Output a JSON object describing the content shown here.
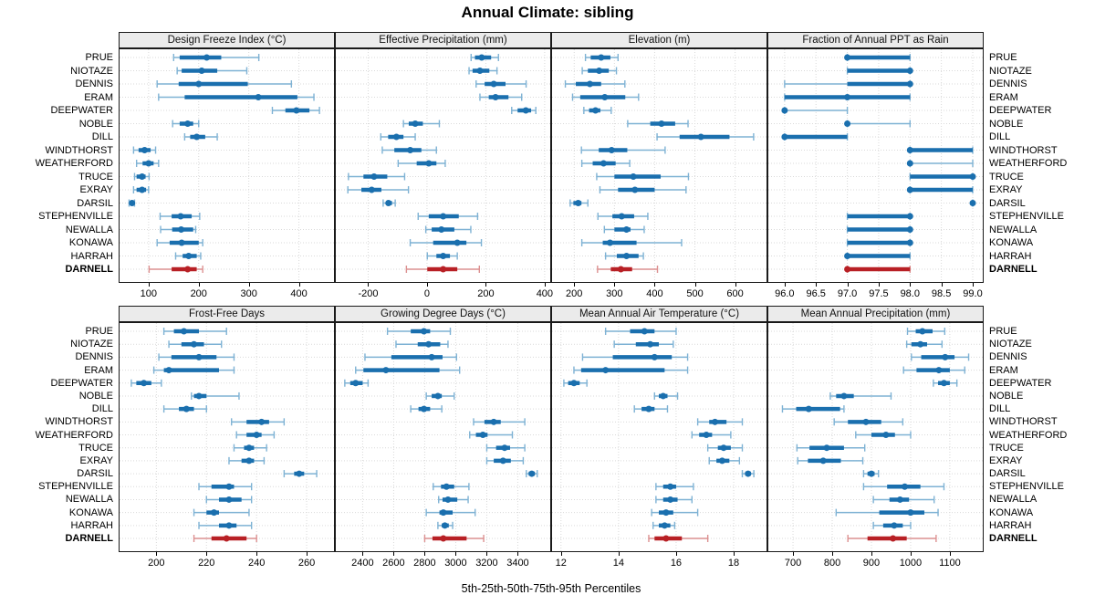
{
  "title": "Annual Climate: sibling",
  "caption": "5th-25th-50th-75th-95th Percentiles",
  "highlight_station": "DARNELL",
  "colors": {
    "blue_dark": "#1a6fae",
    "blue_light": "#7eb2d4",
    "red_dark": "#b82025",
    "red_light": "#dc9090",
    "grid": "#d9d9d9",
    "strip_bg": "#ebebeb",
    "border": "#1a1a1a"
  },
  "chart_data": {
    "type": "percentile-dotplot",
    "percentile_labels": [
      "5th",
      "25th",
      "50th",
      "75th",
      "95th"
    ],
    "legend_position": "none",
    "grid": "dotted",
    "stations": [
      "PRUE",
      "NIOTAZE",
      "DENNIS",
      "ERAM",
      "DEEPWATER",
      "NOBLE",
      "DILL",
      "WINDTHORST",
      "WEATHERFORD",
      "TRUCE",
      "EXRAY",
      "DARSIL",
      "STEPHENVILLE",
      "NEWALLA",
      "KONAWA",
      "HARRAH",
      "DARNELL"
    ],
    "panels": [
      {
        "title": "Design Freeze Index (°C)",
        "row": 0,
        "col": 0,
        "ticks": [
          100,
          200,
          300,
          400
        ],
        "tick_labels": [
          "100",
          "200",
          "300",
          "400"
        ],
        "xlim": [
          42,
          470
        ],
        "values": [
          [
            150,
            162,
            216,
            245,
            320
          ],
          [
            157,
            166,
            206,
            237,
            296
          ],
          [
            117,
            160,
            200,
            298,
            385
          ],
          [
            120,
            172,
            319,
            397,
            430
          ],
          [
            347,
            373,
            395,
            421,
            441
          ],
          [
            148,
            162,
            178,
            189,
            200
          ],
          [
            172,
            183,
            196,
            213,
            237
          ],
          [
            70,
            80,
            92,
            104,
            114
          ],
          [
            76,
            88,
            100,
            110,
            120
          ],
          [
            72,
            76,
            87,
            94,
            101
          ],
          [
            70,
            76,
            87,
            95,
            100
          ],
          [
            61,
            64,
            67,
            70,
            72
          ],
          [
            123,
            146,
            164,
            186,
            202
          ],
          [
            124,
            147,
            165,
            189,
            194
          ],
          [
            117,
            142,
            166,
            200,
            208
          ],
          [
            154,
            168,
            180,
            196,
            204
          ],
          [
            101,
            146,
            178,
            196,
            208
          ]
        ]
      },
      {
        "title": "Effective Precipitation (mm)",
        "row": 0,
        "col": 1,
        "ticks": [
          -200,
          0,
          200,
          400
        ],
        "tick_labels": [
          "-200",
          "0",
          "200",
          "400"
        ],
        "xlim": [
          -310,
          419
        ],
        "values": [
          [
            150,
            163,
            186,
            218,
            243
          ],
          [
            143,
            155,
            180,
            212,
            238
          ],
          [
            167,
            196,
            227,
            267,
            337
          ],
          [
            180,
            210,
            233,
            277,
            322
          ],
          [
            288,
            308,
            336,
            354,
            370
          ],
          [
            -80,
            -62,
            -40,
            -14,
            42
          ],
          [
            -157,
            -132,
            -104,
            -80,
            -40
          ],
          [
            -152,
            -111,
            -57,
            -19,
            32
          ],
          [
            -98,
            -35,
            6,
            32,
            62
          ],
          [
            -267,
            -216,
            -180,
            -135,
            -76
          ],
          [
            -269,
            -223,
            -188,
            -155,
            -63
          ],
          [
            -149,
            -139,
            -131,
            -119,
            -108
          ],
          [
            -30,
            6,
            55,
            108,
            172
          ],
          [
            -4,
            16,
            49,
            93,
            149
          ],
          [
            -57,
            21,
            103,
            134,
            185
          ],
          [
            1,
            32,
            55,
            78,
            103
          ],
          [
            -70,
            1,
            55,
            103,
            178
          ]
        ]
      },
      {
        "title": "Elevation (m)",
        "row": 0,
        "col": 2,
        "ticks": [
          200,
          300,
          400,
          500,
          600
        ],
        "tick_labels": [
          "200",
          "300",
          "400",
          "500",
          "600"
        ],
        "xlim": [
          145,
          678
        ],
        "values": [
          [
            228,
            241,
            267,
            290,
            309
          ],
          [
            220,
            234,
            262,
            286,
            305
          ],
          [
            178,
            204,
            239,
            267,
            326
          ],
          [
            196,
            215,
            276,
            327,
            360
          ],
          [
            224,
            237,
            253,
            265,
            292
          ],
          [
            333,
            389,
            417,
            451,
            483
          ],
          [
            406,
            462,
            515,
            586,
            646
          ],
          [
            218,
            261,
            293,
            332,
            426
          ],
          [
            219,
            246,
            273,
            303,
            338
          ],
          [
            256,
            300,
            347,
            415,
            484
          ],
          [
            264,
            309,
            351,
            400,
            478
          ],
          [
            190,
            198,
            210,
            218,
            234
          ],
          [
            259,
            295,
            318,
            349,
            383
          ],
          [
            275,
            300,
            330,
            340,
            374
          ],
          [
            219,
            271,
            289,
            355,
            467
          ],
          [
            278,
            306,
            330,
            360,
            372
          ],
          [
            258,
            291,
            316,
            344,
            407
          ]
        ]
      },
      {
        "title": "Fraction of Annual PPT as Rain",
        "row": 0,
        "col": 3,
        "ticks": [
          96,
          96.5,
          97,
          97.5,
          98,
          98.5,
          99
        ],
        "tick_labels": [
          "96.0",
          "96.5",
          "97.0",
          "97.5",
          "98.0",
          "98.5",
          "99.0"
        ],
        "xlim": [
          95.74,
          99.16
        ],
        "values": [
          [
            97,
            97,
            97,
            98,
            98
          ],
          [
            97,
            97,
            98,
            98,
            98
          ],
          [
            96,
            97,
            98,
            98,
            98
          ],
          [
            96,
            96,
            97,
            98,
            98
          ],
          [
            96,
            96,
            96,
            96,
            97
          ],
          [
            97,
            97,
            97,
            97,
            98
          ],
          [
            96,
            96,
            96,
            97,
            97
          ],
          [
            98,
            98,
            98,
            99,
            99
          ],
          [
            98,
            98,
            98,
            98,
            99
          ],
          [
            98,
            98,
            99,
            99,
            99
          ],
          [
            98,
            98,
            98,
            99,
            99
          ],
          [
            99,
            99,
            99,
            99,
            99
          ],
          [
            97,
            97,
            98,
            98,
            98
          ],
          [
            97,
            97,
            98,
            98,
            98
          ],
          [
            97,
            97,
            98,
            98,
            98
          ],
          [
            97,
            97,
            97,
            98,
            98
          ],
          [
            97,
            97,
            97,
            98,
            98
          ]
        ]
      },
      {
        "title": "Frost-Free Days",
        "row": 1,
        "col": 0,
        "ticks": [
          200,
          220,
          240,
          260
        ],
        "tick_labels": [
          "200",
          "220",
          "240",
          "260"
        ],
        "xlim": [
          185.3,
          270.9
        ],
        "values": [
          [
            203,
            207,
            211,
            217,
            228
          ],
          [
            205,
            210,
            215,
            219,
            226
          ],
          [
            201,
            206,
            217,
            224,
            231
          ],
          [
            199,
            203,
            205,
            225,
            231
          ],
          [
            190,
            192,
            195,
            198,
            202
          ],
          [
            214,
            215,
            217,
            220,
            233
          ],
          [
            203,
            209,
            212,
            215,
            220
          ],
          [
            230,
            236,
            242,
            245,
            251
          ],
          [
            232,
            236,
            240,
            242,
            247
          ],
          [
            231,
            235,
            237,
            239,
            244
          ],
          [
            229,
            234,
            237,
            239,
            243
          ],
          [
            251,
            255,
            257,
            259,
            264
          ],
          [
            217,
            222,
            229,
            231,
            238
          ],
          [
            220,
            225,
            229,
            234,
            238
          ],
          [
            215,
            220,
            223,
            225,
            237
          ],
          [
            217,
            225,
            229,
            232,
            238
          ],
          [
            215,
            222,
            228,
            236,
            240
          ]
        ]
      },
      {
        "title": "Growing Degree Days (°C)",
        "row": 1,
        "col": 1,
        "ticks": [
          2400,
          2600,
          2800,
          3000,
          3200,
          3400
        ],
        "tick_labels": [
          "2400",
          "2600",
          "2800",
          "3000",
          "3200",
          "3400"
        ],
        "xlim": [
          2227,
          3609
        ],
        "values": [
          [
            2560,
            2710,
            2795,
            2835,
            2965
          ],
          [
            2615,
            2755,
            2825,
            2900,
            2950
          ],
          [
            2415,
            2585,
            2845,
            2915,
            3005
          ],
          [
            2355,
            2405,
            2550,
            2895,
            3025
          ],
          [
            2285,
            2320,
            2355,
            2400,
            2435
          ],
          [
            2810,
            2845,
            2885,
            2910,
            2990
          ],
          [
            2710,
            2760,
            2795,
            2835,
            2910
          ],
          [
            3115,
            3185,
            3245,
            3290,
            3445
          ],
          [
            3090,
            3130,
            3175,
            3205,
            3365
          ],
          [
            3200,
            3260,
            3315,
            3350,
            3445
          ],
          [
            3200,
            3245,
            3305,
            3355,
            3435
          ],
          [
            3455,
            3470,
            3490,
            3510,
            3525
          ],
          [
            2855,
            2905,
            2940,
            2990,
            3085
          ],
          [
            2890,
            2915,
            2950,
            3010,
            3080
          ],
          [
            2810,
            2895,
            2920,
            2980,
            3125
          ],
          [
            2885,
            2910,
            2930,
            2955,
            2980
          ],
          [
            2800,
            2850,
            2920,
            3070,
            3180
          ]
        ]
      },
      {
        "title": "Mean Annual Air Temperature (°C)",
        "row": 1,
        "col": 2,
        "ticks": [
          12,
          14,
          16,
          18
        ],
        "tick_labels": [
          "12",
          "14",
          "16",
          "18"
        ],
        "xlim": [
          11.69,
          19.14
        ],
        "values": [
          [
            13.55,
            14.4,
            14.9,
            15.25,
            16.0
          ],
          [
            13.85,
            14.6,
            15.1,
            15.4,
            15.9
          ],
          [
            12.75,
            13.8,
            15.25,
            15.85,
            16.4
          ],
          [
            12.45,
            12.7,
            13.55,
            15.6,
            16.4
          ],
          [
            12.1,
            12.25,
            12.45,
            12.65,
            12.9
          ],
          [
            15.25,
            15.4,
            15.55,
            15.7,
            16.05
          ],
          [
            14.55,
            14.8,
            15.05,
            15.25,
            15.7
          ],
          [
            16.75,
            17.15,
            17.35,
            17.75,
            18.3
          ],
          [
            16.55,
            16.8,
            17.05,
            17.25,
            17.9
          ],
          [
            17.1,
            17.45,
            17.65,
            17.9,
            18.3
          ],
          [
            17.15,
            17.4,
            17.6,
            17.85,
            18.2
          ],
          [
            18.3,
            18.4,
            18.5,
            18.6,
            18.7
          ],
          [
            15.3,
            15.55,
            15.8,
            16.0,
            16.6
          ],
          [
            15.3,
            15.55,
            15.8,
            16.05,
            16.55
          ],
          [
            15.15,
            15.4,
            15.65,
            15.9,
            16.75
          ],
          [
            15.2,
            15.4,
            15.6,
            15.8,
            15.95
          ],
          [
            15.05,
            15.25,
            15.65,
            16.2,
            17.1
          ]
        ]
      },
      {
        "title": "Mean Annual Precipitation (mm)",
        "row": 1,
        "col": 3,
        "ticks": [
          700,
          800,
          900,
          1000,
          1100
        ],
        "tick_labels": [
          "700",
          "800",
          "900",
          "1000",
          "1100"
        ],
        "xlim": [
          637,
          1184
        ],
        "values": [
          [
            992,
            1013,
            1030,
            1056,
            1087
          ],
          [
            990,
            1002,
            1025,
            1042,
            1080
          ],
          [
            1002,
            1027,
            1088,
            1112,
            1148
          ],
          [
            982,
            1015,
            1072,
            1100,
            1138
          ],
          [
            1058,
            1070,
            1085,
            1100,
            1118
          ],
          [
            795,
            810,
            830,
            855,
            950
          ],
          [
            673,
            708,
            740,
            820,
            830
          ],
          [
            805,
            840,
            886,
            925,
            980
          ],
          [
            860,
            900,
            937,
            960,
            1000
          ],
          [
            710,
            742,
            786,
            830,
            883
          ],
          [
            712,
            738,
            777,
            822,
            878
          ],
          [
            880,
            890,
            900,
            908,
            918
          ],
          [
            880,
            940,
            985,
            1025,
            1085
          ],
          [
            905,
            946,
            973,
            996,
            1060
          ],
          [
            810,
            920,
            1000,
            1035,
            1070
          ],
          [
            905,
            930,
            958,
            980,
            1000
          ],
          [
            840,
            890,
            955,
            990,
            1065
          ]
        ]
      }
    ]
  }
}
